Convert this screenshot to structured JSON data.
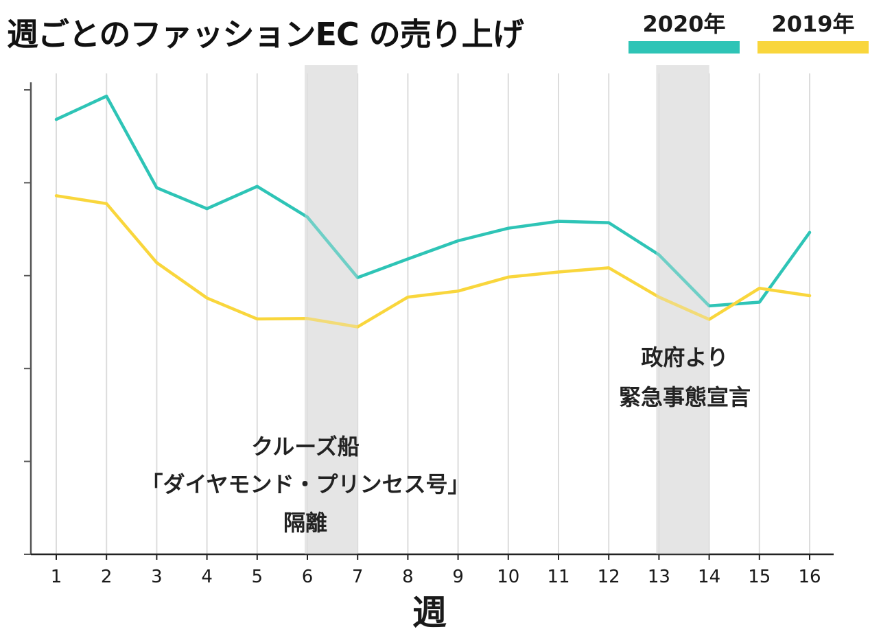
{
  "chart_data": {
    "type": "line",
    "title": "週ごとのファッションEC の売り上げ",
    "xlabel": "週",
    "ylabel": "",
    "x": [
      1,
      2,
      3,
      4,
      5,
      6,
      7,
      8,
      9,
      10,
      11,
      12,
      13,
      14,
      15,
      16
    ],
    "ylim": [
      0,
      100
    ],
    "y_ticks_labeled": false,
    "grid": "vertical",
    "legend_position": "top-right",
    "series": [
      {
        "name": "2020年",
        "color": "#2ec4b6",
        "values": [
          93.5,
          98.5,
          78.8,
          74.3,
          79.1,
          72.5,
          59.5,
          63.5,
          67.4,
          70.1,
          71.6,
          71.3,
          64.4,
          53.4,
          54.2,
          69.2
        ]
      },
      {
        "name": "2019年",
        "color": "#f9d63c",
        "values": [
          77.1,
          75.4,
          62.7,
          55.1,
          50.6,
          50.7,
          48.9,
          55.3,
          56.6,
          59.6,
          60.7,
          61.6,
          55.3,
          50.5,
          57.2,
          55.6
        ]
      }
    ],
    "shaded_regions": [
      {
        "x_start": 6,
        "x_end": 7,
        "color": "#e5e5e5",
        "label_lines": [
          "クルーズ船",
          "「ダイヤモンド・プリンセス号」",
          "隔離"
        ]
      },
      {
        "x_start": 13,
        "x_end": 14,
        "color": "#e5e5e5",
        "label_lines": [
          "政府より",
          "緊急事態宣言"
        ]
      }
    ],
    "axis_color": "#555555",
    "grid_color": "#dcdcdc"
  }
}
